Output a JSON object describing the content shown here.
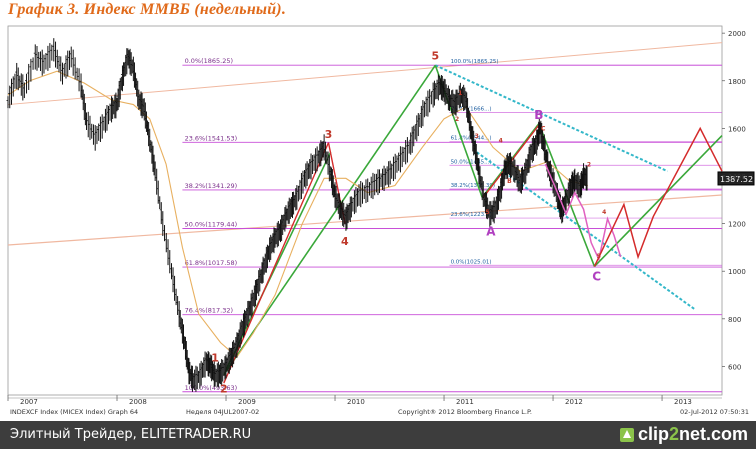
{
  "page_title": "График 3.   Индекс ММВБ (недельный).",
  "chart_data": {
    "type": "line",
    "title": "",
    "xlabel": "",
    "ylabel": "",
    "x_ticks": [
      "2007",
      "2008",
      "2009",
      "2010",
      "2011",
      "2012",
      "2013"
    ],
    "x_tick_pos": [
      2007.0,
      2008.0,
      2009.0,
      2010.0,
      2011.0,
      2012.0,
      2013.0
    ],
    "xlim": [
      2007.0,
      2013.55
    ],
    "y_ticks": [
      600,
      800,
      1000,
      1200,
      1400,
      1600,
      1800,
      2000
    ],
    "ylim": [
      480,
      2030
    ],
    "grid": false,
    "last_price": "1387.52",
    "price": [
      [
        2007.0,
        1710
      ],
      [
        2007.08,
        1820
      ],
      [
        2007.15,
        1760
      ],
      [
        2007.25,
        1900
      ],
      [
        2007.33,
        1870
      ],
      [
        2007.42,
        1930
      ],
      [
        2007.5,
        1830
      ],
      [
        2007.58,
        1900
      ],
      [
        2007.67,
        1780
      ],
      [
        2007.72,
        1630
      ],
      [
        2007.8,
        1560
      ],
      [
        2007.88,
        1620
      ],
      [
        2007.95,
        1680
      ],
      [
        2008.0,
        1700
      ],
      [
        2008.05,
        1810
      ],
      [
        2008.1,
        1900
      ],
      [
        2008.15,
        1850
      ],
      [
        2008.2,
        1720
      ],
      [
        2008.25,
        1680
      ],
      [
        2008.3,
        1550
      ],
      [
        2008.35,
        1420
      ],
      [
        2008.42,
        1200
      ],
      [
        2008.5,
        1000
      ],
      [
        2008.57,
        820
      ],
      [
        2008.62,
        700
      ],
      [
        2008.66,
        580
      ],
      [
        2008.7,
        540
      ],
      [
        2008.76,
        560
      ],
      [
        2008.82,
        620
      ],
      [
        2008.86,
        600
      ],
      [
        2008.9,
        560
      ],
      [
        2008.95,
        570
      ],
      [
        2009.0,
        600
      ],
      [
        2009.05,
        640
      ],
      [
        2009.1,
        690
      ],
      [
        2009.15,
        760
      ],
      [
        2009.2,
        820
      ],
      [
        2009.25,
        880
      ],
      [
        2009.3,
        950
      ],
      [
        2009.35,
        1020
      ],
      [
        2009.4,
        1090
      ],
      [
        2009.45,
        1140
      ],
      [
        2009.5,
        1170
      ],
      [
        2009.55,
        1230
      ],
      [
        2009.6,
        1270
      ],
      [
        2009.65,
        1310
      ],
      [
        2009.72,
        1390
      ],
      [
        2009.78,
        1440
      ],
      [
        2009.85,
        1480
      ],
      [
        2009.9,
        1520
      ],
      [
        2009.96,
        1410
      ],
      [
        2010.0,
        1320
      ],
      [
        2010.05,
        1260
      ],
      [
        2010.1,
        1220
      ],
      [
        2010.15,
        1270
      ],
      [
        2010.22,
        1320
      ],
      [
        2010.3,
        1340
      ],
      [
        2010.38,
        1370
      ],
      [
        2010.45,
        1390
      ],
      [
        2010.52,
        1420
      ],
      [
        2010.6,
        1470
      ],
      [
        2010.68,
        1520
      ],
      [
        2010.75,
        1600
      ],
      [
        2010.82,
        1680
      ],
      [
        2010.9,
        1740
      ],
      [
        2010.96,
        1780
      ],
      [
        2011.0,
        1760
      ],
      [
        2011.05,
        1720
      ],
      [
        2011.1,
        1700
      ],
      [
        2011.15,
        1740
      ],
      [
        2011.2,
        1720
      ],
      [
        2011.24,
        1610
      ],
      [
        2011.28,
        1520
      ],
      [
        2011.32,
        1420
      ],
      [
        2011.37,
        1300
      ],
      [
        2011.42,
        1240
      ],
      [
        2011.47,
        1260
      ],
      [
        2011.52,
        1340
      ],
      [
        2011.56,
        1430
      ],
      [
        2011.6,
        1450
      ],
      [
        2011.65,
        1420
      ],
      [
        2011.7,
        1370
      ],
      [
        2011.75,
        1420
      ],
      [
        2011.8,
        1500
      ],
      [
        2011.85,
        1540
      ],
      [
        2011.88,
        1600
      ],
      [
        2011.92,
        1520
      ],
      [
        2011.96,
        1430
      ],
      [
        2012.0,
        1380
      ],
      [
        2012.05,
        1300
      ],
      [
        2012.08,
        1250
      ],
      [
        2012.12,
        1300
      ],
      [
        2012.17,
        1360
      ],
      [
        2012.2,
        1380
      ],
      [
        2012.25,
        1350
      ],
      [
        2012.28,
        1400
      ],
      [
        2012.32,
        1387
      ]
    ],
    "series": [
      {
        "name": "",
        "kind": "sma",
        "color": "#e8b060",
        "points": [
          [
            2007.0,
            1740
          ],
          [
            2007.2,
            1800
          ],
          [
            2007.45,
            1840
          ],
          [
            2007.7,
            1790
          ],
          [
            2007.95,
            1720
          ],
          [
            2008.15,
            1700
          ],
          [
            2008.3,
            1640
          ],
          [
            2008.45,
            1450
          ],
          [
            2008.6,
            1100
          ],
          [
            2008.75,
            820
          ],
          [
            2008.95,
            700
          ],
          [
            2009.1,
            640
          ],
          [
            2009.25,
            740
          ],
          [
            2009.45,
            900
          ],
          [
            2009.7,
            1200
          ],
          [
            2009.9,
            1390
          ],
          [
            2010.1,
            1390
          ],
          [
            2010.3,
            1330
          ],
          [
            2010.55,
            1360
          ],
          [
            2010.8,
            1520
          ],
          [
            2011.0,
            1640
          ],
          [
            2011.2,
            1690
          ],
          [
            2011.45,
            1520
          ],
          [
            2011.7,
            1420
          ],
          [
            2011.95,
            1460
          ],
          [
            2012.15,
            1380
          ],
          [
            2012.32,
            1360
          ]
        ]
      }
    ],
    "fib_levels": [
      {
        "label": "0.0%(1865.25)",
        "y": 1865.25
      },
      {
        "label": "23.6%(1541.53)",
        "y": 1541.53
      },
      {
        "label": "38.2%(1341.29)",
        "y": 1341.29
      },
      {
        "label": "50.0%(1179.44)",
        "y": 1179.44
      },
      {
        "label": "61.8%(1017.58)",
        "y": 1017.58
      },
      {
        "label": "76.4%(817.32)",
        "y": 817.32
      },
      {
        "label": "100.0%(493.63)",
        "y": 493.63
      }
    ],
    "fib2_levels": [
      {
        "label": "100.0%(1865.25)",
        "y": 1865.25
      },
      {
        "label": "76.4%(1666...)",
        "y": 1666
      },
      {
        "label": "61.8%(1544...)",
        "y": 1544
      },
      {
        "label": "50.0%(1445...)",
        "y": 1445
      },
      {
        "label": "38.2%(1345.39)",
        "y": 1345.39
      },
      {
        "label": "23.6%(1223.3)",
        "y": 1223.3
      },
      {
        "label": "0.0%(1025.01)",
        "y": 1025.01
      }
    ],
    "wave_red_labels": [
      {
        "text": "1",
        "x": 2008.9,
        "y": 620
      },
      {
        "text": "2",
        "x": 2008.98,
        "y": 490
      },
      {
        "text": "3",
        "x": 2009.94,
        "y": 1560
      },
      {
        "text": "4",
        "x": 2010.09,
        "y": 1110
      },
      {
        "text": "5",
        "x": 2010.92,
        "y": 1890
      }
    ],
    "wave_purple_labels": [
      {
        "text": "A",
        "x": 2011.43,
        "y": 1150
      },
      {
        "text": "B",
        "x": 2011.87,
        "y": 1640
      },
      {
        "text": "C",
        "x": 2012.4,
        "y": 960
      }
    ],
    "small_labels": [
      {
        "text": "1",
        "x": 2011.15,
        "y": 1740,
        "color": "#c0392b"
      },
      {
        "text": "2",
        "x": 2011.12,
        "y": 1630,
        "color": "#c0392b"
      },
      {
        "text": "3",
        "x": 2011.3,
        "y": 1560,
        "color": "#c0392b"
      },
      {
        "text": "4",
        "x": 2011.52,
        "y": 1540,
        "color": "#c0392b"
      },
      {
        "text": "5",
        "x": 2011.4,
        "y": 1240,
        "color": "#c0392b"
      },
      {
        "text": "B",
        "x": 2011.6,
        "y": 1370,
        "color": "#c0392b"
      },
      {
        "text": "C",
        "x": 2011.91,
        "y": 1590,
        "color": "#c0392b"
      },
      {
        "text": "2",
        "x": 2012.33,
        "y": 1440,
        "color": "#c0392b"
      },
      {
        "text": "4",
        "x": 2012.47,
        "y": 1240,
        "color": "#c0392b"
      },
      {
        "text": "5",
        "x": 2012.42,
        "y": 1055,
        "color": "#c0392b"
      }
    ],
    "bottom_left": "INDEXCF Index (MICEX Index) Graph 64",
    "bottom_mid": "Неделя 04JUL2007-02",
    "copyright": "Copyright® 2012 Bloomberg Finance L.P.",
    "bottom_right": "02-Jul-2012 07:50:31"
  },
  "footer": {
    "left": "Элитный Трейдер, ELITETRADER.RU",
    "brand_a": "clip",
    "brand_b": "2",
    "brand_c": "net.com"
  },
  "colors": {
    "fib": "#c84fd8",
    "trend_green": "#3aa83a",
    "trend_red": "#d42b2b",
    "channel_cyan": "#33b7c9",
    "wave_pink": "#e060c0",
    "wave_label_red": "#c0392b",
    "wave_label_purple": "#b040c0",
    "long_trend": "#f0b8a0"
  }
}
